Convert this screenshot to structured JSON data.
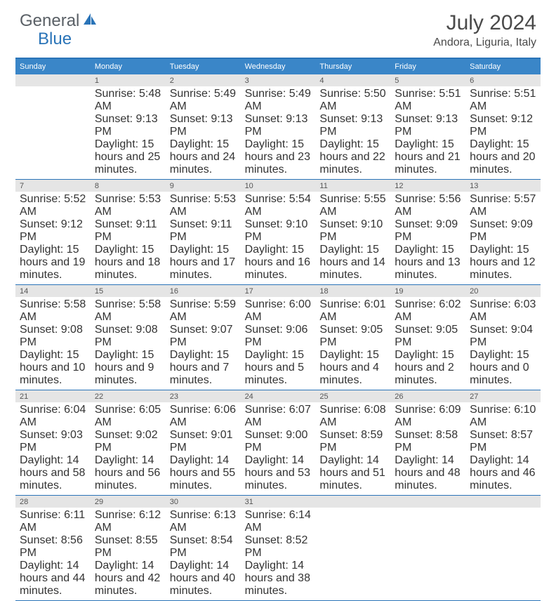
{
  "logo": {
    "text1": "General",
    "text2": "Blue"
  },
  "title": "July 2024",
  "location": "Andora, Liguria, Italy",
  "colors": {
    "accent": "#2a74b8",
    "header_bg": "#3a86c8",
    "daynum_bg": "#e5e5e5",
    "text": "#333333"
  },
  "days_of_week": [
    "Sunday",
    "Monday",
    "Tuesday",
    "Wednesday",
    "Thursday",
    "Friday",
    "Saturday"
  ],
  "weeks": [
    [
      {
        "n": "",
        "sunrise": "",
        "sunset": "",
        "daylight": ""
      },
      {
        "n": "1",
        "sunrise": "Sunrise: 5:48 AM",
        "sunset": "Sunset: 9:13 PM",
        "daylight": "Daylight: 15 hours and 25 minutes."
      },
      {
        "n": "2",
        "sunrise": "Sunrise: 5:49 AM",
        "sunset": "Sunset: 9:13 PM",
        "daylight": "Daylight: 15 hours and 24 minutes."
      },
      {
        "n": "3",
        "sunrise": "Sunrise: 5:49 AM",
        "sunset": "Sunset: 9:13 PM",
        "daylight": "Daylight: 15 hours and 23 minutes."
      },
      {
        "n": "4",
        "sunrise": "Sunrise: 5:50 AM",
        "sunset": "Sunset: 9:13 PM",
        "daylight": "Daylight: 15 hours and 22 minutes."
      },
      {
        "n": "5",
        "sunrise": "Sunrise: 5:51 AM",
        "sunset": "Sunset: 9:13 PM",
        "daylight": "Daylight: 15 hours and 21 minutes."
      },
      {
        "n": "6",
        "sunrise": "Sunrise: 5:51 AM",
        "sunset": "Sunset: 9:12 PM",
        "daylight": "Daylight: 15 hours and 20 minutes."
      }
    ],
    [
      {
        "n": "7",
        "sunrise": "Sunrise: 5:52 AM",
        "sunset": "Sunset: 9:12 PM",
        "daylight": "Daylight: 15 hours and 19 minutes."
      },
      {
        "n": "8",
        "sunrise": "Sunrise: 5:53 AM",
        "sunset": "Sunset: 9:11 PM",
        "daylight": "Daylight: 15 hours and 18 minutes."
      },
      {
        "n": "9",
        "sunrise": "Sunrise: 5:53 AM",
        "sunset": "Sunset: 9:11 PM",
        "daylight": "Daylight: 15 hours and 17 minutes."
      },
      {
        "n": "10",
        "sunrise": "Sunrise: 5:54 AM",
        "sunset": "Sunset: 9:10 PM",
        "daylight": "Daylight: 15 hours and 16 minutes."
      },
      {
        "n": "11",
        "sunrise": "Sunrise: 5:55 AM",
        "sunset": "Sunset: 9:10 PM",
        "daylight": "Daylight: 15 hours and 14 minutes."
      },
      {
        "n": "12",
        "sunrise": "Sunrise: 5:56 AM",
        "sunset": "Sunset: 9:09 PM",
        "daylight": "Daylight: 15 hours and 13 minutes."
      },
      {
        "n": "13",
        "sunrise": "Sunrise: 5:57 AM",
        "sunset": "Sunset: 9:09 PM",
        "daylight": "Daylight: 15 hours and 12 minutes."
      }
    ],
    [
      {
        "n": "14",
        "sunrise": "Sunrise: 5:58 AM",
        "sunset": "Sunset: 9:08 PM",
        "daylight": "Daylight: 15 hours and 10 minutes."
      },
      {
        "n": "15",
        "sunrise": "Sunrise: 5:58 AM",
        "sunset": "Sunset: 9:08 PM",
        "daylight": "Daylight: 15 hours and 9 minutes."
      },
      {
        "n": "16",
        "sunrise": "Sunrise: 5:59 AM",
        "sunset": "Sunset: 9:07 PM",
        "daylight": "Daylight: 15 hours and 7 minutes."
      },
      {
        "n": "17",
        "sunrise": "Sunrise: 6:00 AM",
        "sunset": "Sunset: 9:06 PM",
        "daylight": "Daylight: 15 hours and 5 minutes."
      },
      {
        "n": "18",
        "sunrise": "Sunrise: 6:01 AM",
        "sunset": "Sunset: 9:05 PM",
        "daylight": "Daylight: 15 hours and 4 minutes."
      },
      {
        "n": "19",
        "sunrise": "Sunrise: 6:02 AM",
        "sunset": "Sunset: 9:05 PM",
        "daylight": "Daylight: 15 hours and 2 minutes."
      },
      {
        "n": "20",
        "sunrise": "Sunrise: 6:03 AM",
        "sunset": "Sunset: 9:04 PM",
        "daylight": "Daylight: 15 hours and 0 minutes."
      }
    ],
    [
      {
        "n": "21",
        "sunrise": "Sunrise: 6:04 AM",
        "sunset": "Sunset: 9:03 PM",
        "daylight": "Daylight: 14 hours and 58 minutes."
      },
      {
        "n": "22",
        "sunrise": "Sunrise: 6:05 AM",
        "sunset": "Sunset: 9:02 PM",
        "daylight": "Daylight: 14 hours and 56 minutes."
      },
      {
        "n": "23",
        "sunrise": "Sunrise: 6:06 AM",
        "sunset": "Sunset: 9:01 PM",
        "daylight": "Daylight: 14 hours and 55 minutes."
      },
      {
        "n": "24",
        "sunrise": "Sunrise: 6:07 AM",
        "sunset": "Sunset: 9:00 PM",
        "daylight": "Daylight: 14 hours and 53 minutes."
      },
      {
        "n": "25",
        "sunrise": "Sunrise: 6:08 AM",
        "sunset": "Sunset: 8:59 PM",
        "daylight": "Daylight: 14 hours and 51 minutes."
      },
      {
        "n": "26",
        "sunrise": "Sunrise: 6:09 AM",
        "sunset": "Sunset: 8:58 PM",
        "daylight": "Daylight: 14 hours and 48 minutes."
      },
      {
        "n": "27",
        "sunrise": "Sunrise: 6:10 AM",
        "sunset": "Sunset: 8:57 PM",
        "daylight": "Daylight: 14 hours and 46 minutes."
      }
    ],
    [
      {
        "n": "28",
        "sunrise": "Sunrise: 6:11 AM",
        "sunset": "Sunset: 8:56 PM",
        "daylight": "Daylight: 14 hours and 44 minutes."
      },
      {
        "n": "29",
        "sunrise": "Sunrise: 6:12 AM",
        "sunset": "Sunset: 8:55 PM",
        "daylight": "Daylight: 14 hours and 42 minutes."
      },
      {
        "n": "30",
        "sunrise": "Sunrise: 6:13 AM",
        "sunset": "Sunset: 8:54 PM",
        "daylight": "Daylight: 14 hours and 40 minutes."
      },
      {
        "n": "31",
        "sunrise": "Sunrise: 6:14 AM",
        "sunset": "Sunset: 8:52 PM",
        "daylight": "Daylight: 14 hours and 38 minutes."
      },
      {
        "n": "",
        "sunrise": "",
        "sunset": "",
        "daylight": ""
      },
      {
        "n": "",
        "sunrise": "",
        "sunset": "",
        "daylight": ""
      },
      {
        "n": "",
        "sunrise": "",
        "sunset": "",
        "daylight": ""
      }
    ]
  ]
}
